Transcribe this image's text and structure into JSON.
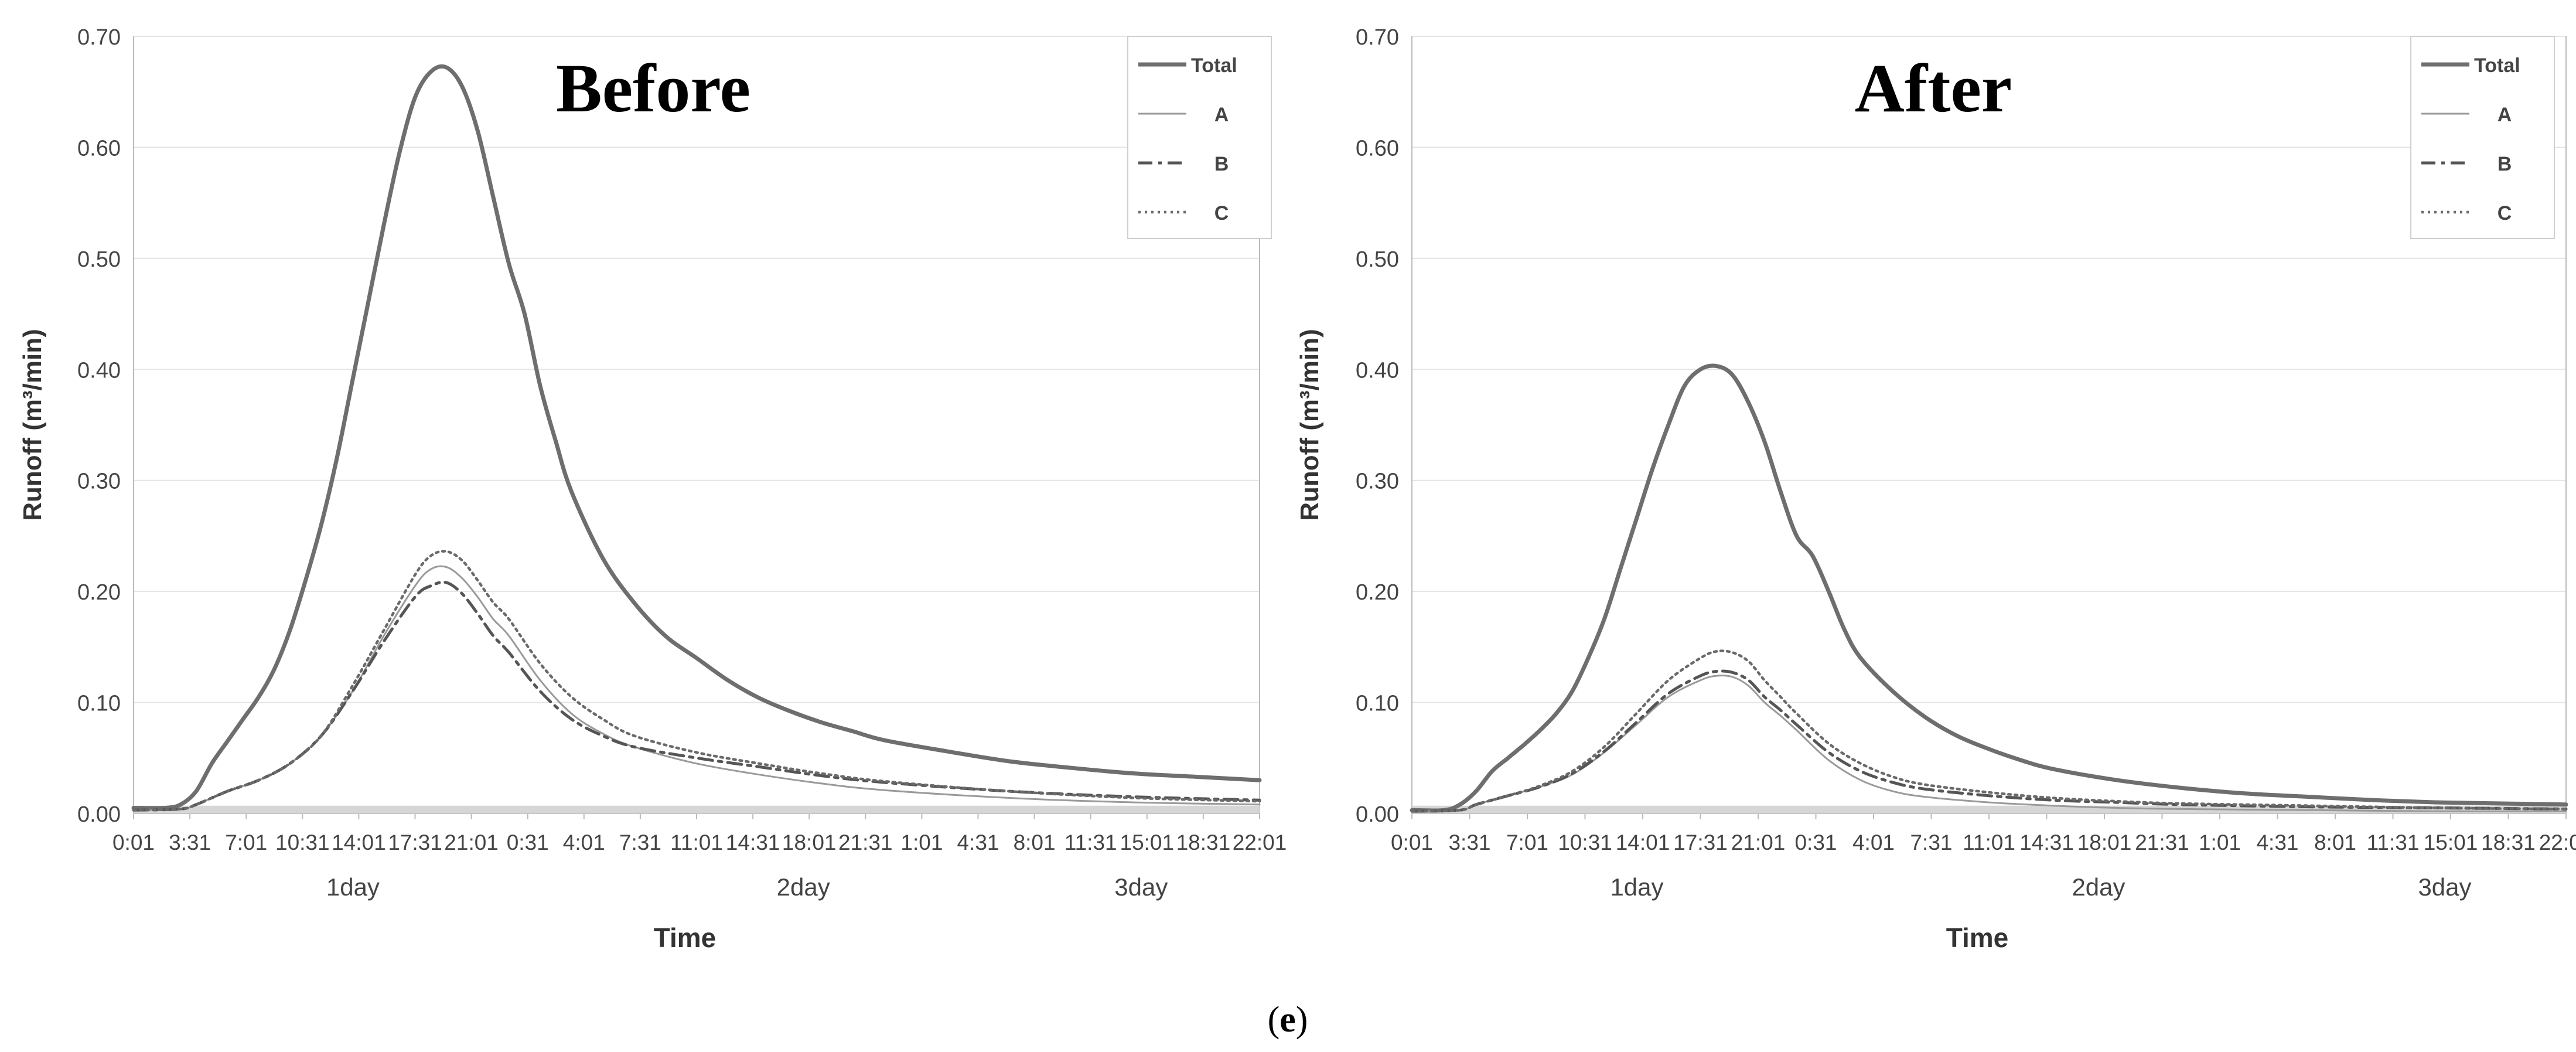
{
  "caption": "(e)",
  "caption_letter": "e",
  "colors": {
    "total": "#6e6e6e",
    "a": "#9a9a9a",
    "b": "#555555",
    "c": "#6a6a6a",
    "grid": "#e4e4e4",
    "axis": "#bbbbbb",
    "base_band": "#d6d6d6"
  },
  "chart_data": [
    {
      "type": "line",
      "title": "Before",
      "xlabel": "Time",
      "ylabel": "Runoff (m³/min)",
      "ylim": [
        0,
        0.7
      ],
      "yticks": [
        "0.00",
        "0.10",
        "0.20",
        "0.30",
        "0.40",
        "0.50",
        "0.60",
        "0.70"
      ],
      "xlim": [
        0,
        72
      ],
      "x_unit": "hours",
      "xtick_labels": [
        "0:01",
        "3:31",
        "7:01",
        "10:31",
        "14:01",
        "17:31",
        "21:01",
        "0:31",
        "4:01",
        "7:31",
        "11:01",
        "14:31",
        "18:01",
        "21:31",
        "1:01",
        "4:31",
        "8:01",
        "11:31",
        "15:01",
        "18:31",
        "22:01"
      ],
      "day_labels": [
        "1day",
        "2day",
        "3day"
      ],
      "grid": true,
      "legend_position": "top-right",
      "series": [
        {
          "name": "Total",
          "style": "solid-thick",
          "x": [
            0,
            2,
            3,
            4,
            5,
            6,
            7,
            8,
            9,
            10,
            11,
            12,
            13,
            14,
            15,
            16,
            17,
            18,
            19,
            20,
            21,
            22,
            23,
            24,
            25,
            26,
            27,
            28,
            30,
            32,
            34,
            36,
            38,
            40,
            42,
            44,
            46,
            48,
            52,
            56,
            60,
            64,
            68,
            72
          ],
          "y": [
            0.005,
            0.005,
            0.008,
            0.02,
            0.045,
            0.065,
            0.085,
            0.105,
            0.13,
            0.165,
            0.21,
            0.26,
            0.32,
            0.39,
            0.46,
            0.53,
            0.595,
            0.645,
            0.668,
            0.672,
            0.655,
            0.615,
            0.555,
            0.495,
            0.45,
            0.385,
            0.335,
            0.29,
            0.23,
            0.19,
            0.16,
            0.14,
            0.12,
            0.104,
            0.092,
            0.082,
            0.074,
            0.066,
            0.056,
            0.047,
            0.041,
            0.036,
            0.033,
            0.03
          ]
        },
        {
          "name": "A",
          "style": "solid-thin",
          "x": [
            0,
            3,
            4,
            6,
            8,
            10,
            12,
            14,
            16,
            18,
            19,
            20,
            21,
            22,
            23,
            24,
            26,
            28,
            30,
            32,
            36,
            40,
            44,
            48,
            56,
            64,
            72
          ],
          "y": [
            0.003,
            0.004,
            0.008,
            0.02,
            0.03,
            0.045,
            0.07,
            0.11,
            0.16,
            0.205,
            0.22,
            0.222,
            0.212,
            0.195,
            0.175,
            0.16,
            0.12,
            0.09,
            0.072,
            0.06,
            0.045,
            0.035,
            0.027,
            0.021,
            0.014,
            0.01,
            0.008
          ]
        },
        {
          "name": "B",
          "style": "dash-dot",
          "x": [
            0,
            3,
            4,
            6,
            8,
            10,
            12,
            14,
            16,
            18,
            19,
            20,
            21,
            22,
            23,
            24,
            26,
            28,
            30,
            32,
            36,
            40,
            44,
            48,
            56,
            64,
            72
          ],
          "y": [
            0.003,
            0.004,
            0.008,
            0.02,
            0.03,
            0.045,
            0.07,
            0.11,
            0.155,
            0.195,
            0.205,
            0.208,
            0.198,
            0.18,
            0.16,
            0.145,
            0.11,
            0.085,
            0.07,
            0.06,
            0.05,
            0.042,
            0.034,
            0.028,
            0.02,
            0.015,
            0.012
          ]
        },
        {
          "name": "C",
          "style": "dotted",
          "x": [
            0,
            3,
            4,
            6,
            8,
            10,
            12,
            14,
            16,
            18,
            19,
            20,
            21,
            22,
            23,
            24,
            26,
            28,
            30,
            32,
            36,
            40,
            44,
            48,
            56,
            64,
            72
          ],
          "y": [
            0.003,
            0.004,
            0.008,
            0.02,
            0.03,
            0.045,
            0.07,
            0.115,
            0.165,
            0.215,
            0.232,
            0.236,
            0.228,
            0.21,
            0.19,
            0.175,
            0.135,
            0.105,
            0.085,
            0.07,
            0.055,
            0.045,
            0.036,
            0.029,
            0.02,
            0.014,
            0.011
          ]
        }
      ]
    },
    {
      "type": "line",
      "title": "After",
      "xlabel": "Time",
      "ylabel": "Runoff (m³/min)",
      "ylim": [
        0,
        0.7
      ],
      "yticks": [
        "0.00",
        "0.10",
        "0.20",
        "0.30",
        "0.40",
        "0.50",
        "0.60",
        "0.70"
      ],
      "xlim": [
        0,
        72
      ],
      "x_unit": "hours",
      "xtick_labels": [
        "0:01",
        "3:31",
        "7:01",
        "10:31",
        "14:01",
        "17:31",
        "21:01",
        "0:31",
        "4:01",
        "7:31",
        "11:01",
        "14:31",
        "18:01",
        "21:31",
        "1:01",
        "4:31",
        "8:01",
        "11:31",
        "15:01",
        "18:31",
        "22:01"
      ],
      "day_labels": [
        "1day",
        "2day",
        "3day"
      ],
      "grid": true,
      "legend_position": "top-right",
      "series": [
        {
          "name": "Total",
          "style": "solid-thick",
          "x": [
            0,
            2,
            3,
            4,
            5,
            6,
            7,
            8,
            9,
            10,
            11,
            12,
            13,
            14,
            15,
            16,
            17,
            18,
            19,
            20,
            21,
            22,
            23,
            24,
            25,
            26,
            27,
            28,
            30,
            32,
            34,
            36,
            38,
            40,
            44,
            48,
            52,
            56,
            60,
            64,
            68,
            72
          ],
          "y": [
            0.003,
            0.003,
            0.008,
            0.02,
            0.038,
            0.05,
            0.062,
            0.075,
            0.09,
            0.11,
            0.14,
            0.175,
            0.22,
            0.265,
            0.31,
            0.35,
            0.385,
            0.4,
            0.403,
            0.395,
            0.37,
            0.335,
            0.29,
            0.25,
            0.232,
            0.2,
            0.165,
            0.14,
            0.11,
            0.087,
            0.07,
            0.058,
            0.048,
            0.04,
            0.03,
            0.023,
            0.018,
            0.015,
            0.012,
            0.01,
            0.009,
            0.008
          ]
        },
        {
          "name": "A",
          "style": "solid-thin",
          "x": [
            0,
            3,
            4,
            6,
            8,
            10,
            12,
            14,
            16,
            18,
            19,
            20,
            21,
            22,
            23,
            24,
            26,
            28,
            30,
            32,
            36,
            40,
            44,
            48,
            56,
            64,
            72
          ],
          "y": [
            0.002,
            0.003,
            0.008,
            0.016,
            0.024,
            0.035,
            0.055,
            0.08,
            0.105,
            0.12,
            0.124,
            0.123,
            0.115,
            0.1,
            0.088,
            0.075,
            0.048,
            0.03,
            0.02,
            0.015,
            0.01,
            0.007,
            0.005,
            0.004,
            0.003,
            0.002,
            0.002
          ]
        },
        {
          "name": "B",
          "style": "dash-dot",
          "x": [
            0,
            3,
            4,
            6,
            8,
            10,
            12,
            14,
            16,
            18,
            19,
            20,
            21,
            22,
            23,
            24,
            26,
            28,
            30,
            32,
            36,
            40,
            44,
            48,
            56,
            64,
            72
          ],
          "y": [
            0.002,
            0.003,
            0.008,
            0.016,
            0.024,
            0.036,
            0.056,
            0.082,
            0.108,
            0.124,
            0.128,
            0.127,
            0.12,
            0.105,
            0.093,
            0.08,
            0.055,
            0.038,
            0.028,
            0.022,
            0.016,
            0.012,
            0.01,
            0.008,
            0.006,
            0.005,
            0.004
          ]
        },
        {
          "name": "C",
          "style": "dotted",
          "x": [
            0,
            3,
            4,
            6,
            8,
            10,
            12,
            14,
            16,
            18,
            19,
            20,
            21,
            22,
            23,
            24,
            26,
            28,
            30,
            32,
            36,
            40,
            44,
            48,
            56,
            64,
            72
          ],
          "y": [
            0.002,
            0.003,
            0.008,
            0.016,
            0.025,
            0.038,
            0.06,
            0.09,
            0.12,
            0.14,
            0.146,
            0.145,
            0.137,
            0.12,
            0.105,
            0.09,
            0.063,
            0.045,
            0.033,
            0.026,
            0.019,
            0.014,
            0.011,
            0.009,
            0.007,
            0.005,
            0.004
          ]
        }
      ]
    }
  ]
}
